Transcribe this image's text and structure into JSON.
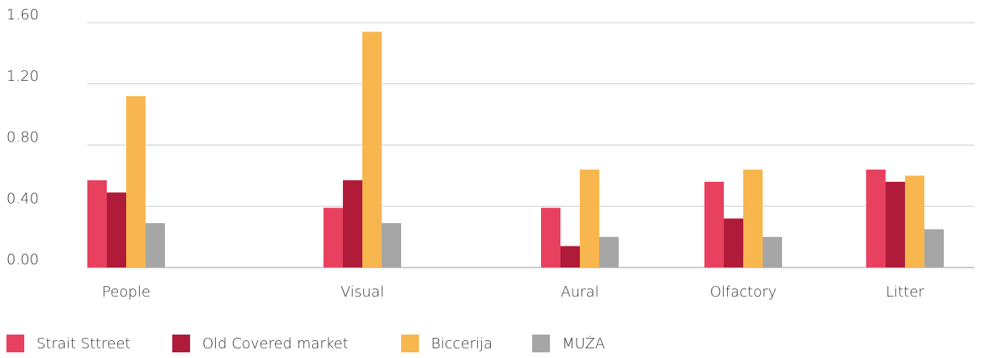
{
  "chart_data": {
    "type": "bar",
    "categories": [
      "People",
      "Visual",
      "Aural",
      "Olfactory",
      "Litter"
    ],
    "series": [
      {
        "name": "Strait Sttreet",
        "color": "#e8415f",
        "values": [
          0.57,
          0.39,
          0.39,
          0.56,
          0.64
        ]
      },
      {
        "name": "Old Covered market",
        "color": "#b01b3a",
        "values": [
          0.49,
          0.57,
          0.14,
          0.32,
          0.56
        ]
      },
      {
        "name": "Biccerija",
        "color": "#f8b64f",
        "values": [
          1.12,
          1.54,
          0.64,
          0.64,
          0.6
        ]
      },
      {
        "name": "MUŻA",
        "color": "#a6a6a6",
        "values": [
          0.29,
          0.29,
          0.2,
          0.2,
          0.25
        ]
      }
    ],
    "ylim": [
      0,
      1.6
    ],
    "yticks": [
      {
        "value": 0,
        "label": "0.00"
      },
      {
        "value": 0.4,
        "label": "0.40"
      },
      {
        "value": 0.8,
        "label": "0.80"
      },
      {
        "value": 1.2,
        "label": "1.20"
      },
      {
        "value": 1.6,
        "label": "1.60"
      }
    ],
    "grid": true,
    "legend": "bottom"
  }
}
